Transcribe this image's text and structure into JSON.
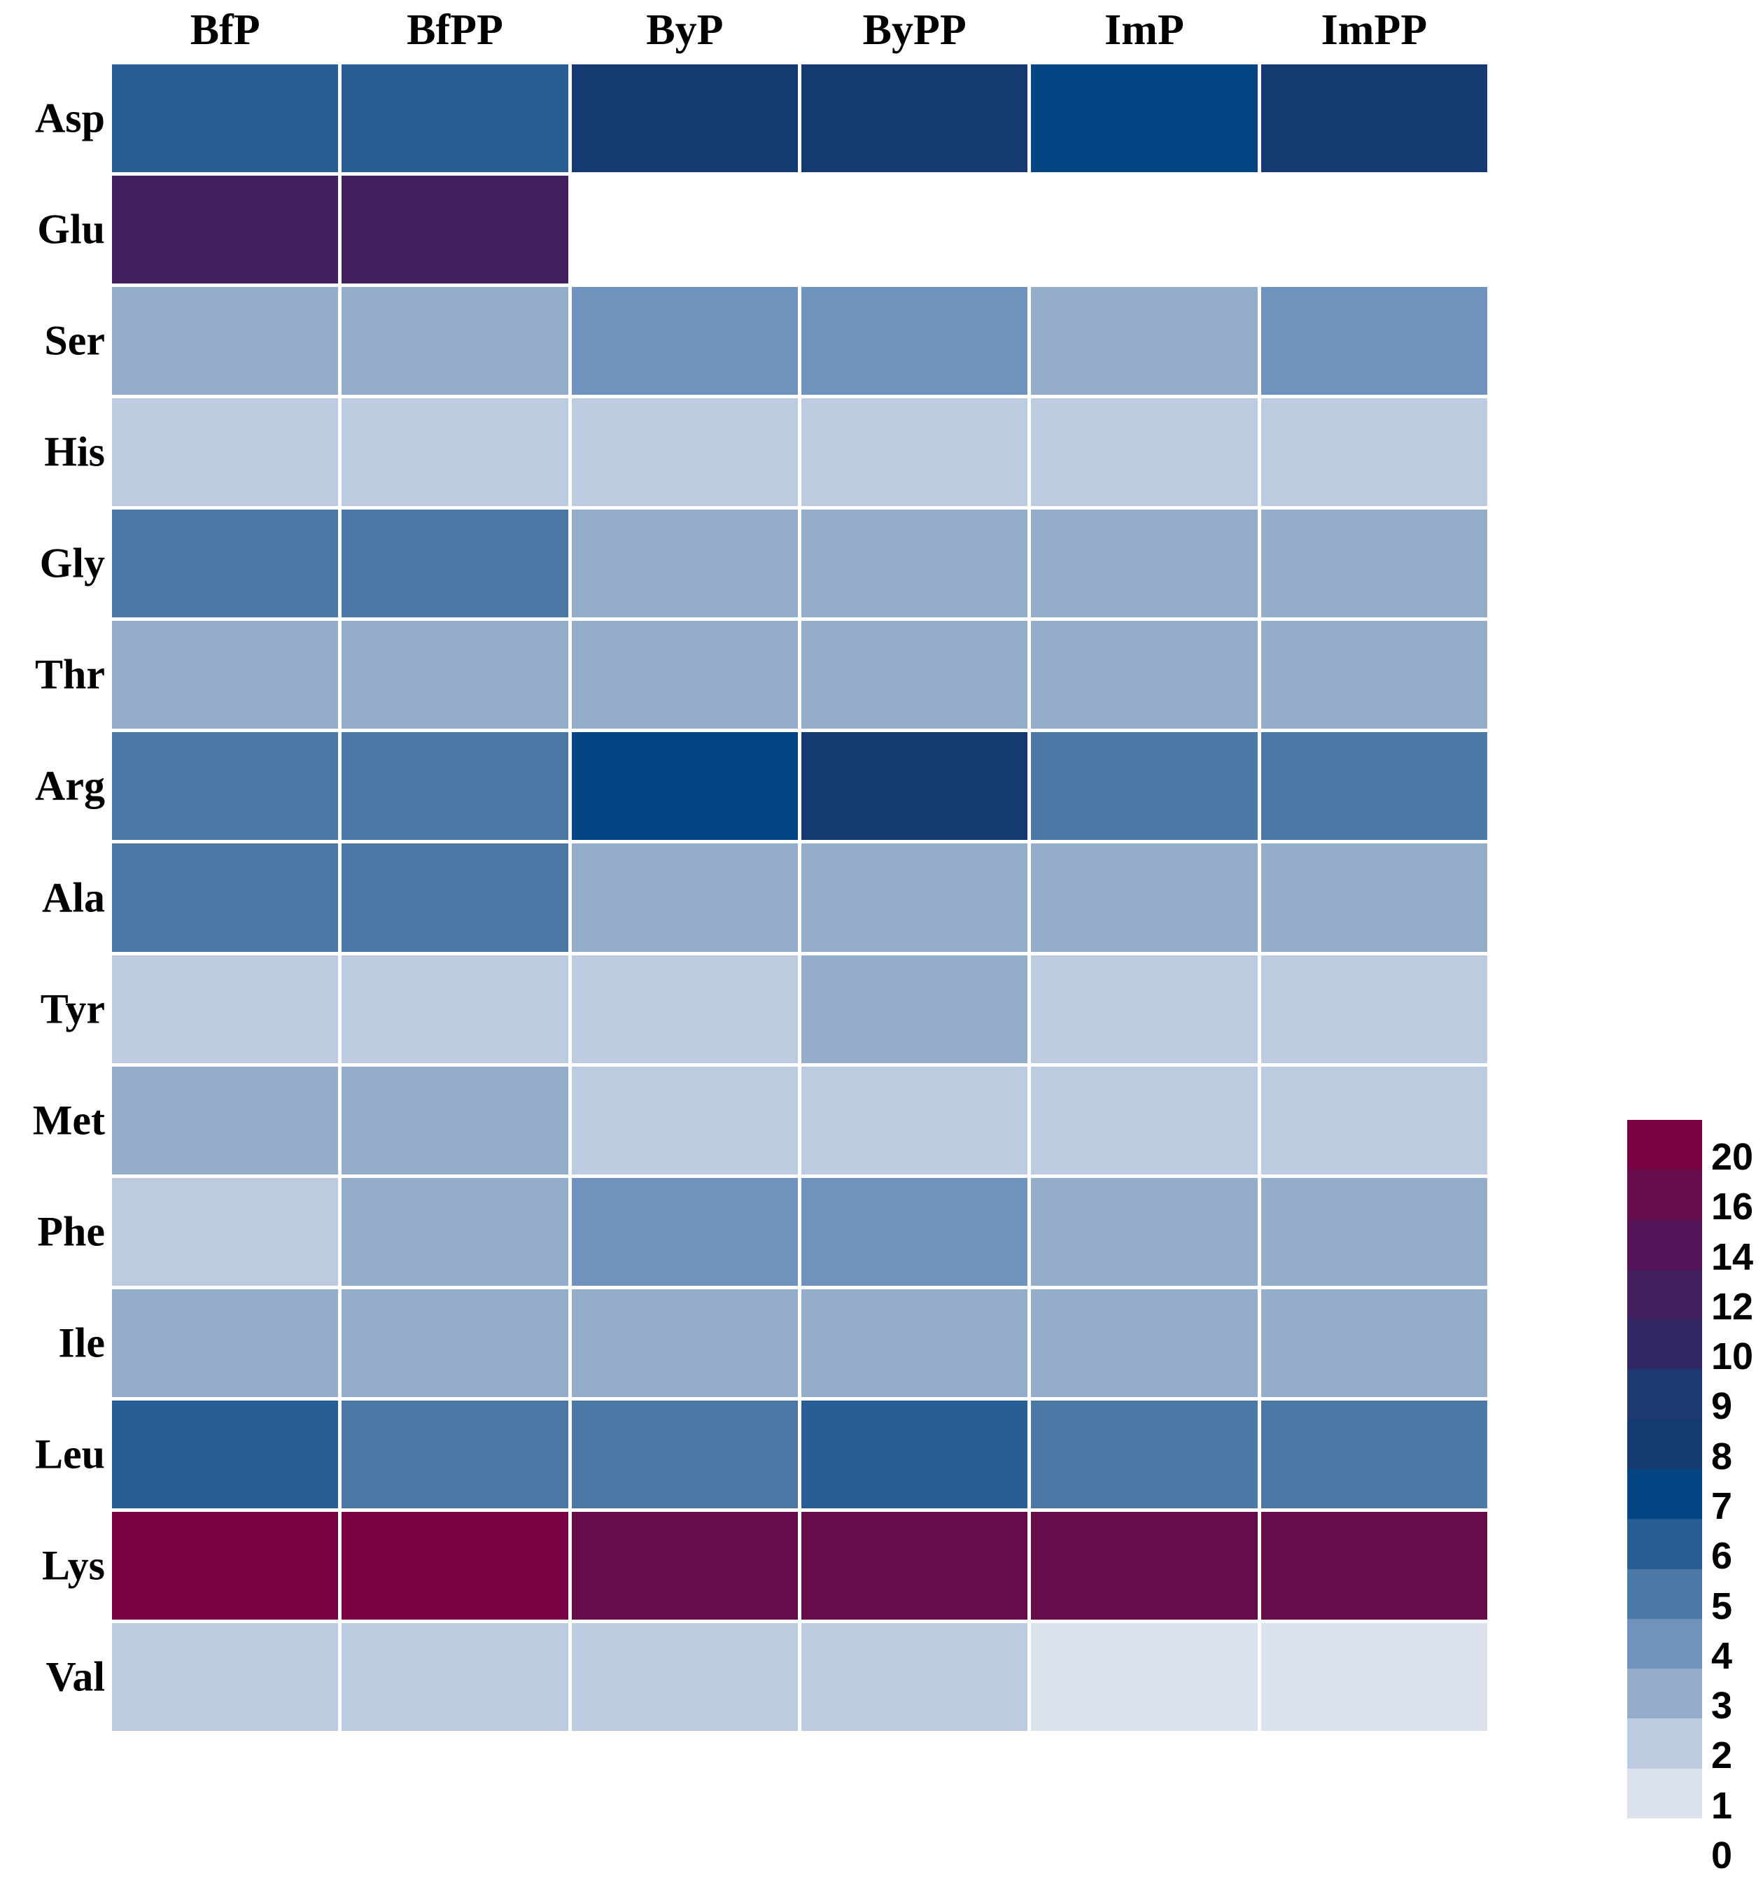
{
  "chart_data": {
    "type": "heatmap",
    "title": "",
    "xlabel": "",
    "ylabel": "",
    "columns": [
      "BfP",
      "BfPP",
      "ByP",
      "ByPP",
      "ImP",
      "ImPP"
    ],
    "rows": [
      "Asp",
      "Glu",
      "Ser",
      "His",
      "Gly",
      "Thr",
      "Arg",
      "Ala",
      "Tyr",
      "Met",
      "Phe",
      "Ile",
      "Leu",
      "Lys",
      "Val"
    ],
    "values": [
      [
        5.5,
        5.5,
        7.5,
        7.5,
        6.5,
        7.5
      ],
      [
        11,
        11,
        null,
        null,
        null,
        null
      ],
      [
        2.5,
        2.5,
        3.5,
        3.5,
        2.5,
        3.5
      ],
      [
        1.5,
        1.5,
        1.5,
        1.5,
        1.5,
        1.5
      ],
      [
        4.5,
        4.5,
        2.5,
        2.5,
        2.5,
        2.5
      ],
      [
        2.5,
        2.5,
        2.5,
        2.5,
        2.5,
        2.5
      ],
      [
        4.5,
        4.5,
        6.5,
        7.5,
        4.5,
        4.5
      ],
      [
        4.5,
        4.5,
        2.5,
        2.5,
        2.5,
        2.5
      ],
      [
        1.5,
        1.5,
        1.5,
        2.5,
        1.5,
        1.5
      ],
      [
        2.5,
        2.5,
        1.5,
        1.5,
        1.5,
        1.5
      ],
      [
        1.5,
        2.5,
        3.5,
        3.5,
        2.5,
        2.5
      ],
      [
        2.5,
        2.5,
        2.5,
        2.5,
        2.5,
        2.5
      ],
      [
        5.5,
        4.5,
        4.5,
        5.5,
        4.5,
        4.5
      ],
      [
        18,
        18,
        15,
        15,
        15,
        15
      ],
      [
        1.5,
        1.5,
        1.5,
        1.5,
        0.5,
        0.5
      ]
    ],
    "value_note": "Cell values estimated as midpoints of the discrete legend bins; null = missing cell (drawn white).",
    "missing_cells": [
      [
        "Glu",
        "ByP"
      ],
      [
        "Glu",
        "ByPP"
      ],
      [
        "Glu",
        "ImP"
      ],
      [
        "Glu",
        "ImPP"
      ]
    ],
    "legend": {
      "position": "right",
      "tick_labels": [
        "20",
        "16",
        "14",
        "12",
        "10",
        "9",
        "8",
        "7",
        "6",
        "5",
        "4",
        "3",
        "2",
        "1",
        "0"
      ],
      "boundaries": [
        0,
        1,
        2,
        3,
        4,
        5,
        6,
        7,
        8,
        9,
        10,
        12,
        14,
        16,
        20
      ],
      "colors_low_to_high": [
        "#DCE2EC",
        "#BCCBDF",
        "#94ADCB",
        "#6F93BC",
        "#4C78A6",
        "#295E95",
        "#064583",
        "#143A71",
        "#1F3A73",
        "#322765",
        "#42205E",
        "#561459",
        "#670D4B",
        "#7C0343"
      ]
    },
    "grid": "white gaps between cells",
    "layout": {
      "legend_on_right": true,
      "axis_lines": false,
      "gridlines": false
    }
  },
  "colors": {
    "background": "#FFFFFF",
    "label_text": "#000000",
    "cell_gap": "#FFFFFF"
  }
}
